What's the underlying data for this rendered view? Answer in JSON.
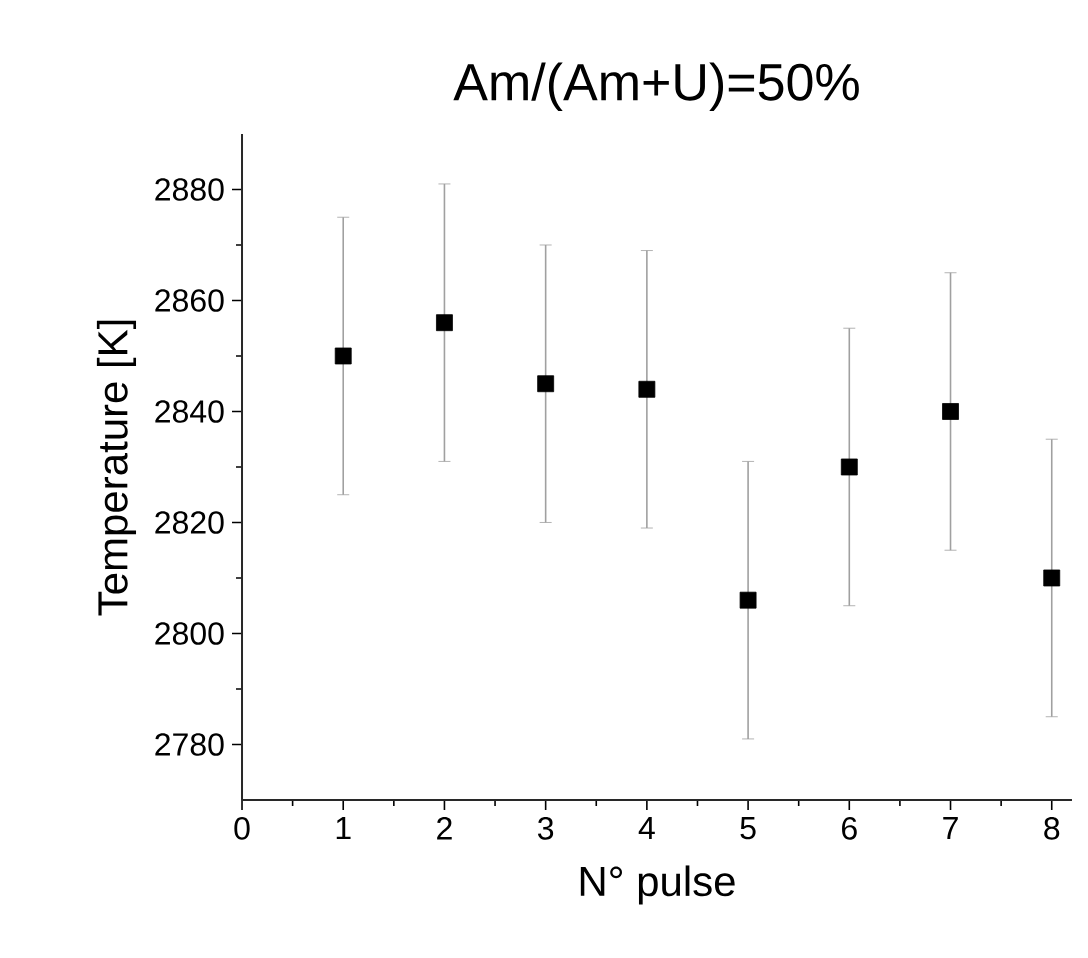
{
  "chart_data": {
    "type": "scatter",
    "title": "Am/(Am+U)=50%",
    "xlabel": "N° pulse",
    "ylabel": "Temperature [K]",
    "x": [
      1,
      2,
      3,
      4,
      5,
      6,
      7,
      8
    ],
    "values": [
      2850,
      2856,
      2845,
      2844,
      2806,
      2830,
      2840,
      2810
    ],
    "errors": [
      25,
      25,
      25,
      25,
      25,
      25,
      25,
      25
    ],
    "color": "#000000",
    "marker": "square",
    "xlim": [
      0,
      8.2
    ],
    "ylim": [
      2770,
      2890
    ],
    "xticks": [
      0,
      1,
      2,
      3,
      4,
      5,
      6,
      7,
      8
    ],
    "yticks": [
      2780,
      2800,
      2820,
      2840,
      2860,
      2880
    ]
  }
}
